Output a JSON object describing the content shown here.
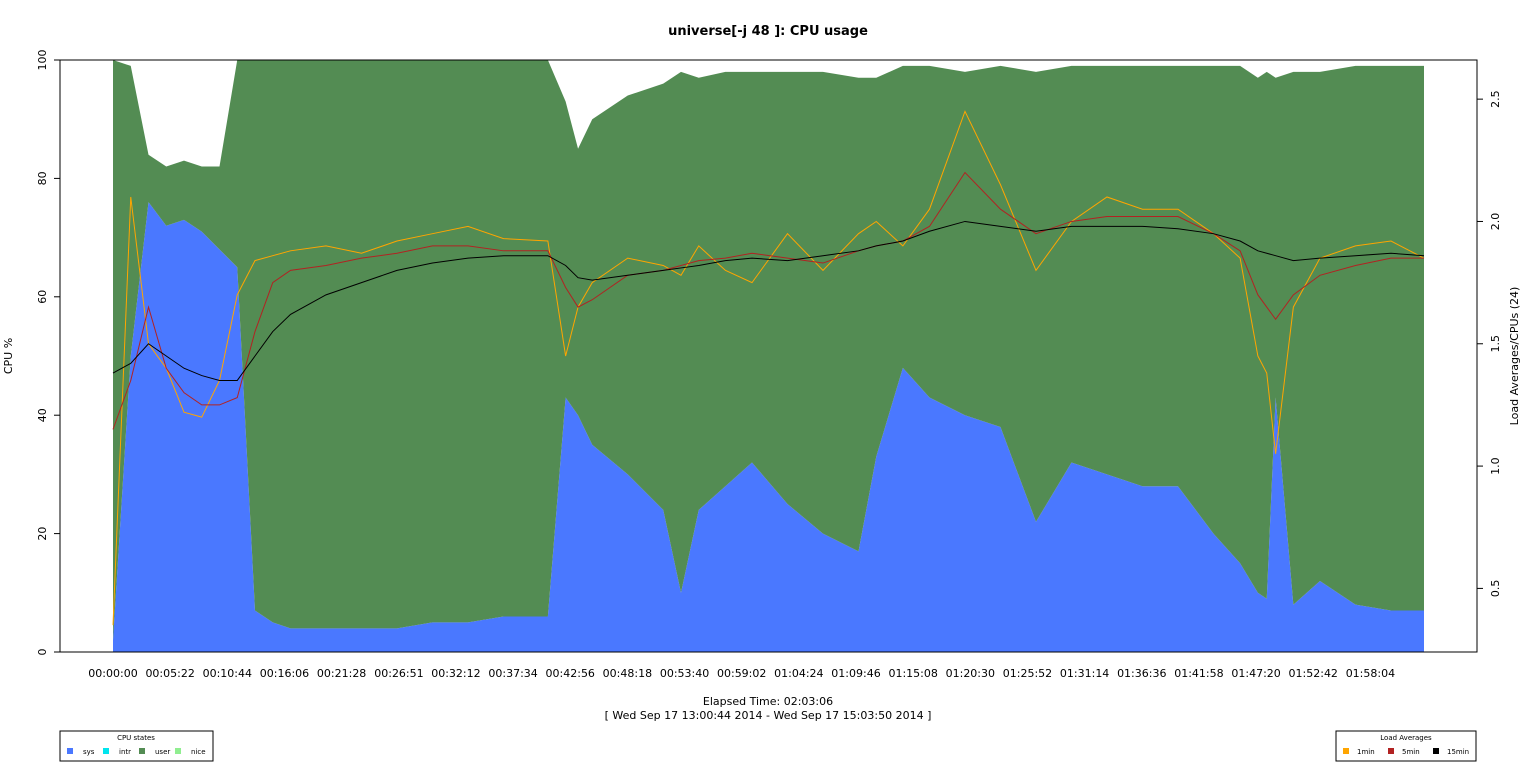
{
  "chart_data": {
    "type": "area",
    "title": "universe[-j 48 ]: CPU usage",
    "ylabel": "CPU %",
    "y2label": "Load Averages/CPUs (24)",
    "xlabel": "Elapsed Time: 02:03:06",
    "date_range": "[ Wed Sep 17 13:00:44 2014 - Wed Sep 17 15:03:50 2014 ]",
    "xlim": [
      0,
      7386
    ],
    "ylim": [
      0,
      100
    ],
    "y2lim": [
      0.24,
      2.66
    ],
    "yticks": [
      0,
      20,
      40,
      60,
      80,
      100
    ],
    "y2ticks": [
      0.5,
      1.0,
      1.5,
      2.0,
      2.5
    ],
    "y2ticklabels": [
      "0.5",
      "1.0",
      "1.5",
      "2.0",
      "2.5"
    ],
    "xticks": [
      0,
      322,
      644,
      966,
      1288,
      1611,
      1932,
      2254,
      2576,
      2898,
      3220,
      3542,
      3864,
      4186,
      4508,
      4830,
      5152,
      5474,
      5796,
      6118,
      6440,
      6762,
      7084
    ],
    "xticklabels": [
      "00:00:00",
      "00:05:22",
      "00:10:44",
      "00:16:06",
      "00:21:28",
      "00:26:51",
      "00:32:12",
      "00:37:34",
      "00:42:56",
      "00:48:18",
      "00:53:40",
      "00:59:02",
      "01:04:24",
      "01:09:46",
      "01:15:08",
      "01:20:30",
      "01:25:52",
      "01:31:14",
      "01:36:36",
      "01:41:58",
      "01:47:20",
      "01:52:42",
      "01:58:04"
    ],
    "x": [
      0,
      100,
      200,
      300,
      400,
      500,
      600,
      700,
      800,
      900,
      1000,
      1200,
      1400,
      1600,
      1800,
      2000,
      2200,
      2450,
      2550,
      2620,
      2700,
      2900,
      3100,
      3200,
      3300,
      3450,
      3600,
      3800,
      4000,
      4200,
      4300,
      4450,
      4600,
      4800,
      5000,
      5200,
      5400,
      5600,
      5800,
      6000,
      6200,
      6350,
      6450,
      6500,
      6550,
      6650,
      6800,
      7000,
      7200,
      7386
    ],
    "cpu_series": [
      {
        "name": "sys",
        "color": "#4a78ff",
        "values": [
          2,
          50,
          76,
          72,
          73,
          71,
          68,
          65,
          7,
          5,
          4,
          4,
          4,
          4,
          5,
          5,
          6,
          6,
          43,
          40,
          35,
          30,
          24,
          10,
          24,
          28,
          32,
          25,
          20,
          17,
          33,
          48,
          43,
          40,
          38,
          22,
          32,
          30,
          28,
          28,
          20,
          15,
          10,
          9,
          43,
          8,
          12,
          8,
          7,
          7
        ]
      },
      {
        "name": "intr",
        "color": "#00e5ee",
        "values": []
      },
      {
        "name": "user",
        "color": "#538c53",
        "values": [
          98,
          49,
          8,
          10,
          10,
          11,
          14,
          35,
          93,
          95,
          96,
          96,
          96,
          96,
          95,
          95,
          94,
          94,
          50,
          45,
          55,
          64,
          72,
          88,
          73,
          70,
          66,
          73,
          78,
          80,
          64,
          51,
          56,
          58,
          61,
          76,
          67,
          69,
          71,
          71,
          79,
          84,
          87,
          89,
          54,
          90,
          86,
          91,
          92,
          92
        ]
      },
      {
        "name": "nice",
        "color": "#90ee90",
        "values": []
      }
    ],
    "load_series": [
      {
        "name": "1min",
        "color": "#ffa500",
        "values": [
          0.35,
          2.1,
          1.5,
          1.4,
          1.22,
          1.2,
          1.35,
          1.7,
          1.84,
          1.86,
          1.88,
          1.9,
          1.87,
          1.92,
          1.95,
          1.98,
          1.93,
          1.92,
          1.45,
          1.65,
          1.75,
          1.85,
          1.82,
          1.78,
          1.9,
          1.8,
          1.75,
          1.95,
          1.8,
          1.95,
          2.0,
          1.9,
          2.05,
          2.45,
          2.15,
          1.8,
          2.0,
          2.1,
          2.05,
          2.05,
          1.95,
          1.85,
          1.45,
          1.38,
          1.05,
          1.65,
          1.85,
          1.9,
          1.92,
          1.85
        ]
      },
      {
        "name": "5min",
        "color": "#b22222",
        "values": [
          1.15,
          1.35,
          1.65,
          1.4,
          1.3,
          1.25,
          1.25,
          1.28,
          1.55,
          1.75,
          1.8,
          1.82,
          1.85,
          1.87,
          1.9,
          1.9,
          1.88,
          1.88,
          1.73,
          1.65,
          1.68,
          1.78,
          1.8,
          1.82,
          1.84,
          1.85,
          1.87,
          1.85,
          1.83,
          1.88,
          1.9,
          1.92,
          1.98,
          2.2,
          2.05,
          1.95,
          2.0,
          2.02,
          2.02,
          2.02,
          1.95,
          1.88,
          1.7,
          1.65,
          1.6,
          1.7,
          1.78,
          1.82,
          1.85,
          1.85
        ]
      },
      {
        "name": "15min",
        "color": "#000000",
        "values": [
          1.38,
          1.42,
          1.5,
          1.45,
          1.4,
          1.37,
          1.35,
          1.35,
          1.45,
          1.55,
          1.62,
          1.7,
          1.75,
          1.8,
          1.83,
          1.85,
          1.86,
          1.86,
          1.82,
          1.77,
          1.76,
          1.78,
          1.8,
          1.81,
          1.82,
          1.84,
          1.85,
          1.84,
          1.86,
          1.88,
          1.9,
          1.92,
          1.96,
          2.0,
          1.98,
          1.96,
          1.98,
          1.98,
          1.98,
          1.97,
          1.95,
          1.92,
          1.88,
          1.87,
          1.86,
          1.84,
          1.85,
          1.86,
          1.87,
          1.86
        ]
      }
    ],
    "legend_cpu": {
      "title": "CPU states",
      "items": [
        {
          "label": "sys",
          "color": "#4a78ff"
        },
        {
          "label": "intr",
          "color": "#00e5ee"
        },
        {
          "label": "user",
          "color": "#538c53"
        },
        {
          "label": "nice",
          "color": "#90ee90"
        }
      ],
      "position": "bottom-left"
    },
    "legend_load": {
      "title": "Load Averages",
      "items": [
        {
          "label": "1min",
          "color": "#ffa500"
        },
        {
          "label": "5min",
          "color": "#b22222"
        },
        {
          "label": "15min",
          "color": "#000000"
        }
      ],
      "position": "bottom-right"
    },
    "grid": false
  }
}
